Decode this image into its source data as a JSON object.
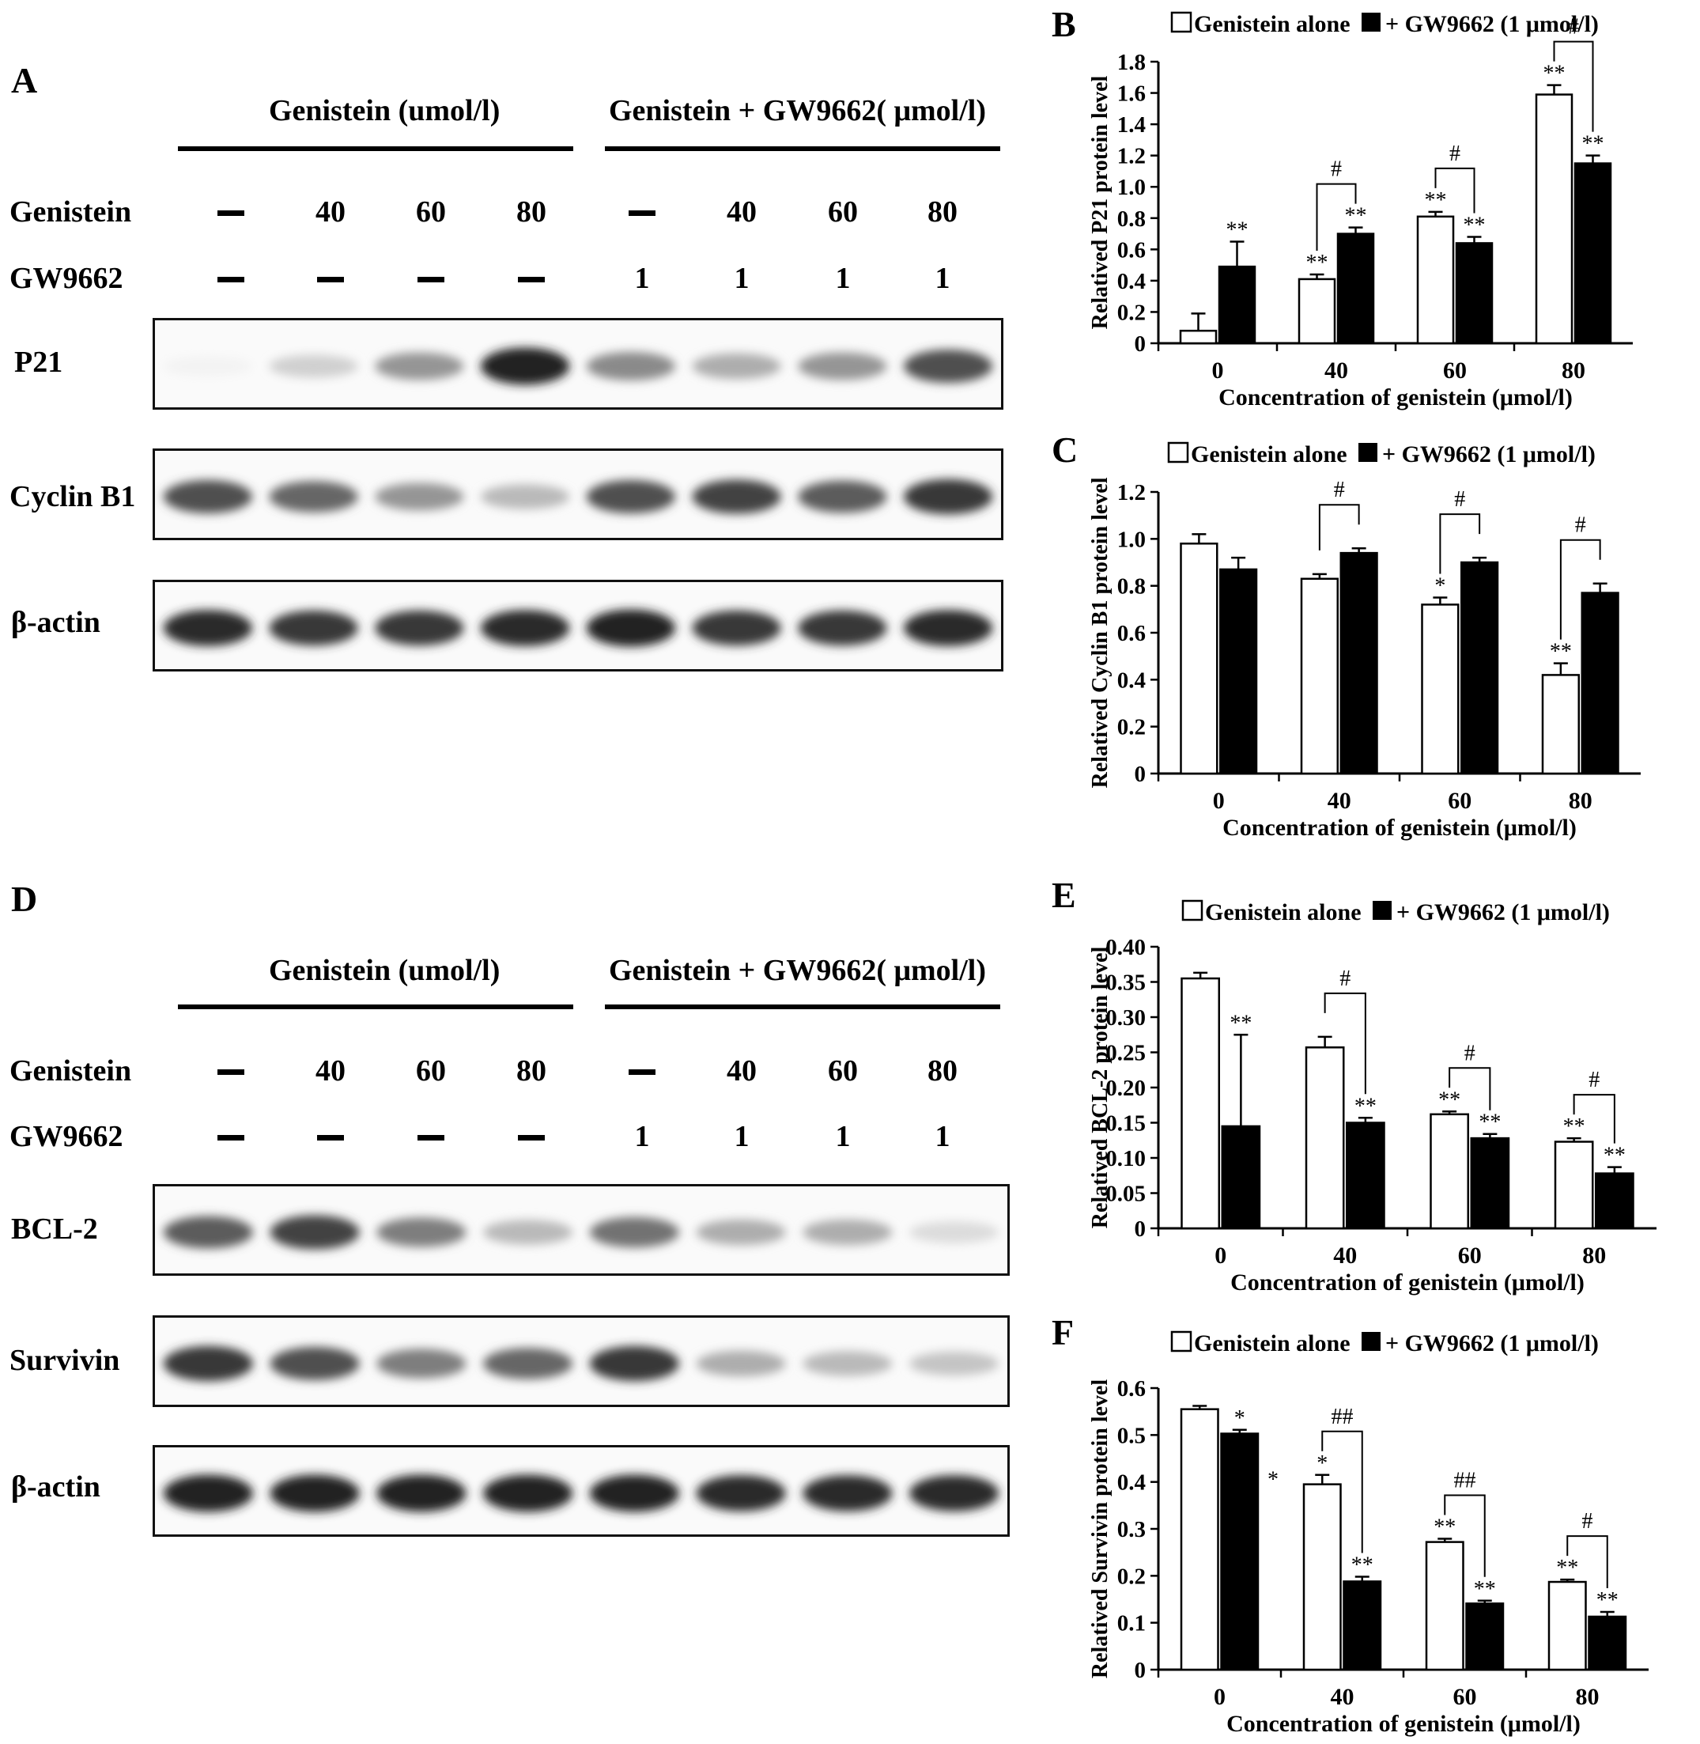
{
  "blots": [
    {
      "panel": "A",
      "group_left": "Genistein (umol/l)",
      "group_right": "Genistein + GW9662( μmol/l)",
      "row_genistein_label": "Genistein",
      "row_gw_label": "GW9662",
      "genistein_values": [
        "",
        "40",
        "60",
        "80",
        "",
        "40",
        "60",
        "80"
      ],
      "gw_values": [
        "",
        "",
        "",
        "",
        "1",
        "1",
        "1",
        "1"
      ],
      "strips": [
        {
          "label": "P21",
          "intensity": [
            0.05,
            0.2,
            0.45,
            0.95,
            0.5,
            0.35,
            0.45,
            0.75
          ]
        },
        {
          "label": "Cyclin B1",
          "intensity": [
            0.75,
            0.65,
            0.45,
            0.3,
            0.75,
            0.8,
            0.7,
            0.85
          ]
        },
        {
          "label": "β-actin",
          "intensity": [
            0.9,
            0.85,
            0.85,
            0.9,
            0.95,
            0.85,
            0.85,
            0.9
          ]
        }
      ]
    },
    {
      "panel": "D",
      "group_left": "Genistein (umol/l)",
      "group_right": "Genistein + GW9662( μmol/l)",
      "row_genistein_label": "Genistein",
      "row_gw_label": "GW9662",
      "genistein_values": [
        "",
        "40",
        "60",
        "80",
        "",
        "40",
        "60",
        "80"
      ],
      "gw_values": [
        "",
        "",
        "",
        "",
        "1",
        "1",
        "1",
        "1"
      ],
      "strips": [
        {
          "label": "BCL-2",
          "intensity": [
            0.7,
            0.8,
            0.55,
            0.3,
            0.6,
            0.35,
            0.35,
            0.15
          ]
        },
        {
          "label": "Survivin",
          "intensity": [
            0.85,
            0.75,
            0.55,
            0.65,
            0.85,
            0.35,
            0.3,
            0.25
          ]
        },
        {
          "label": "β-actin",
          "intensity": [
            0.95,
            0.95,
            0.95,
            0.95,
            0.95,
            0.9,
            0.9,
            0.9
          ]
        }
      ]
    }
  ],
  "chart_data": [
    {
      "panel": "B",
      "type": "bar",
      "categories": [
        "0",
        "40",
        "60",
        "80"
      ],
      "xlabel": "Concentration of genistein (μmol/l)",
      "ylabel": "Relatived P21 protein level",
      "ylim": [
        0,
        1.8
      ],
      "yticks": [
        "0",
        "0.2",
        "0.4",
        "0.6",
        "0.8",
        "1.0",
        "1.2",
        "1.4",
        "1.6",
        "1.8"
      ],
      "series": [
        {
          "name": "Genistein alone",
          "values": [
            0.08,
            0.41,
            0.81,
            1.59
          ],
          "errors": [
            0.11,
            0.03,
            0.03,
            0.06
          ],
          "marks": [
            "",
            "**",
            "**",
            "**"
          ]
        },
        {
          "name": "+ GW9662 (1 μmol/l)",
          "values": [
            0.49,
            0.7,
            0.64,
            1.15
          ],
          "errors": [
            0.16,
            0.04,
            0.04,
            0.05
          ],
          "marks": [
            "**",
            "**",
            "**",
            "**"
          ]
        }
      ],
      "comparisons": [
        "",
        "#",
        "#",
        "#"
      ]
    },
    {
      "panel": "C",
      "type": "bar",
      "categories": [
        "0",
        "40",
        "60",
        "80"
      ],
      "xlabel": "Concentration of genistein (μmol/l)",
      "ylabel": "Relatived Cyclin B1 protein level",
      "ylim": [
        0,
        1.2
      ],
      "yticks": [
        "0",
        "0.2",
        "0.4",
        "0.6",
        "0.8",
        "1.0",
        "1.2"
      ],
      "series": [
        {
          "name": "Genistein alone",
          "values": [
            0.98,
            0.83,
            0.72,
            0.42
          ],
          "errors": [
            0.04,
            0.02,
            0.03,
            0.05
          ],
          "marks": [
            "",
            "",
            "*",
            "**"
          ]
        },
        {
          "name": "+ GW9662 (1 μmol/l)",
          "values": [
            0.87,
            0.94,
            0.9,
            0.77
          ],
          "errors": [
            0.05,
            0.02,
            0.02,
            0.04
          ],
          "marks": [
            "",
            "",
            "",
            ""
          ]
        }
      ],
      "comparisons": [
        "",
        "#",
        "#",
        "#"
      ]
    },
    {
      "panel": "E",
      "type": "bar",
      "categories": [
        "0",
        "40",
        "60",
        "80"
      ],
      "xlabel": "Concentration of genistein (μmol/l)",
      "ylabel": "Relatived BCL-2 protein level",
      "ylim": [
        0,
        0.4
      ],
      "yticks": [
        "0",
        "0.05",
        "0.10",
        "0.15",
        "0.20",
        "0.25",
        "0.30",
        "0.35",
        "0.40"
      ],
      "series": [
        {
          "name": "Genistein alone",
          "values": [
            0.355,
            0.257,
            0.162,
            0.123
          ],
          "errors": [
            0.008,
            0.015,
            0.004,
            0.005
          ],
          "marks": [
            "",
            "",
            "**",
            "**"
          ]
        },
        {
          "name": "+ GW9662 (1 μmol/l)",
          "values": [
            0.145,
            0.15,
            0.128,
            0.078
          ],
          "errors": [
            0.13,
            0.007,
            0.006,
            0.009
          ],
          "marks": [
            "**",
            "**",
            "**",
            "**"
          ]
        }
      ],
      "comparisons": [
        "",
        "#",
        "#",
        "#"
      ]
    },
    {
      "panel": "F",
      "type": "bar",
      "categories": [
        "0",
        "40",
        "60",
        "80"
      ],
      "xlabel": "Concentration of genistein (μmol/l)",
      "ylabel": "Relatived Survivin protein level",
      "ylim": [
        0,
        0.6
      ],
      "yticks": [
        "0",
        "0.1",
        "0.2",
        "0.3",
        "0.4",
        "0.5",
        "0.6"
      ],
      "series": [
        {
          "name": "Genistein alone",
          "values": [
            0.555,
            0.395,
            0.272,
            0.187
          ],
          "errors": [
            0.007,
            0.02,
            0.007,
            0.005
          ],
          "marks": [
            "",
            "*",
            "**",
            "**"
          ]
        },
        {
          "name": "+ GW9662 (1 μmol/l)",
          "values": [
            0.503,
            0.188,
            0.141,
            0.113
          ],
          "errors": [
            0.008,
            0.01,
            0.006,
            0.01
          ],
          "marks": [
            "*",
            "**",
            "**",
            "**"
          ]
        }
      ],
      "comparisons": [
        "",
        "##",
        "##",
        "#"
      ],
      "extra_marks": [
        "*"
      ]
    }
  ]
}
